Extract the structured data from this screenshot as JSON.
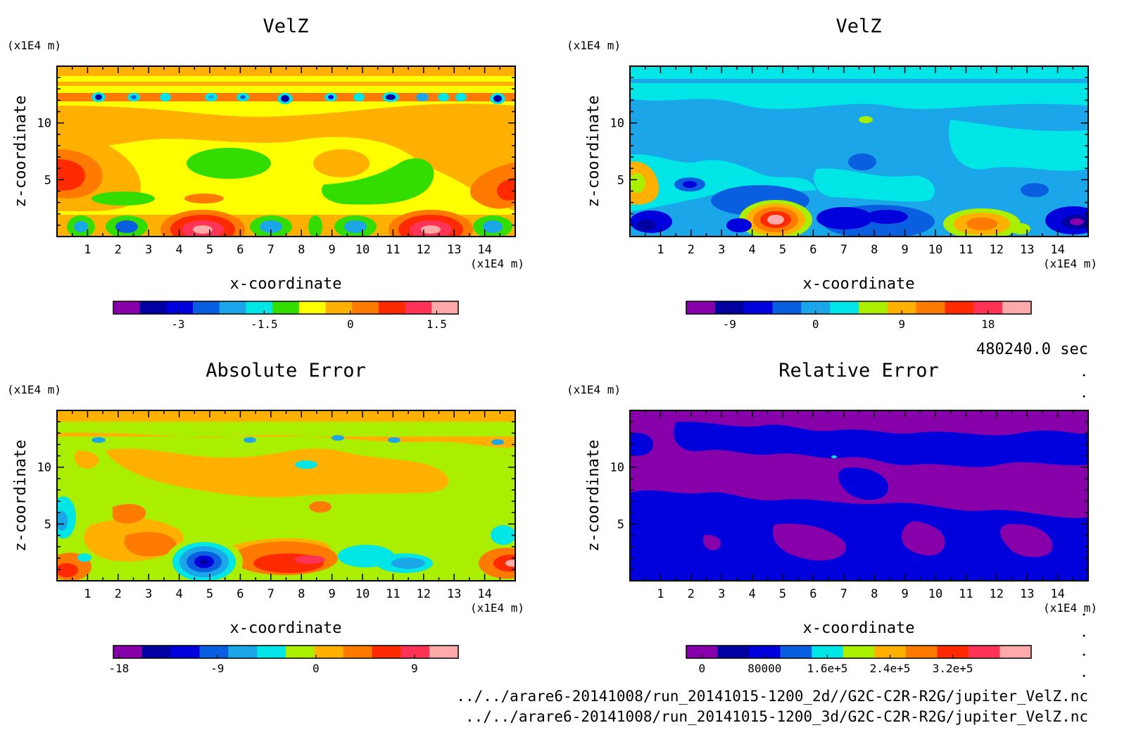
{
  "timestamp": "480240.0 sec",
  "footer_lines": [
    "../../arare6-20141008/run_20141015-1200_2d//G2C-C2R-R2G/jupiter_VelZ.nc",
    "../../arare6-20141008/run_20141015-1200_3d/G2C-C2R-R2G/jupiter_VelZ.nc"
  ],
  "chart_data": [
    {
      "type": "heatmap",
      "title": "VelZ",
      "xlabel": "x-coordinate",
      "ylabel": "z-coordinate",
      "x_unit": "(x1E4 m)",
      "y_unit": "(x1E4 m)",
      "xlim": [
        0,
        15
      ],
      "ylim": [
        0,
        15
      ],
      "x_ticks": [
        "1",
        "2",
        "3",
        "4",
        "5",
        "6",
        "7",
        "8",
        "9",
        "10",
        "11",
        "12",
        "13",
        "14"
      ],
      "y_ticks": [
        "5",
        "10"
      ],
      "colorbar": {
        "colors": [
          "#8800aa",
          "#0000a0",
          "#0000dd",
          "#0a5fe0",
          "#1aa6e8",
          "#00e5e5",
          "#33dd00",
          "#ffff00",
          "#ffb000",
          "#ff7a00",
          "#ff2a00",
          "#ff3355",
          "#ffaaaa"
        ],
        "tick_labels": [
          "-3",
          "-1.5",
          "0",
          "1.5"
        ],
        "tick_levels": [
          -3,
          -1.5,
          0,
          1.5
        ],
        "range": [
          -4.125,
          1.875
        ]
      }
    },
    {
      "type": "heatmap",
      "title": "VelZ",
      "xlabel": "x-coordinate",
      "ylabel": "z-coordinate",
      "x_unit": "(x1E4 m)",
      "y_unit": "(x1E4 m)",
      "xlim": [
        0,
        15
      ],
      "ylim": [
        0,
        15
      ],
      "x_ticks": [
        "1",
        "2",
        "3",
        "4",
        "5",
        "6",
        "7",
        "8",
        "9",
        "10",
        "11",
        "12",
        "13",
        "14"
      ],
      "y_ticks": [
        "5",
        "10"
      ],
      "colorbar": {
        "colors": [
          "#8800aa",
          "#0000a0",
          "#0000dd",
          "#0a5fe0",
          "#1aa6e8",
          "#00e5e5",
          "#aaee00",
          "#ffb000",
          "#ff7a00",
          "#ff2a00",
          "#ff3355",
          "#ffaaaa"
        ],
        "tick_labels": [
          "-9",
          "0",
          "9",
          "18"
        ],
        "tick_levels": [
          -9,
          0,
          9,
          18
        ],
        "range": [
          -13.5,
          22.5
        ]
      }
    },
    {
      "type": "heatmap",
      "title": "Absolute Error",
      "xlabel": "x-coordinate",
      "ylabel": "z-coordinate",
      "x_unit": "(x1E4 m)",
      "y_unit": "(x1E4 m)",
      "xlim": [
        0,
        15
      ],
      "ylim": [
        0,
        15
      ],
      "x_ticks": [
        "1",
        "2",
        "3",
        "4",
        "5",
        "6",
        "7",
        "8",
        "9",
        "10",
        "11",
        "12",
        "13",
        "14"
      ],
      "y_ticks": [
        "5",
        "10"
      ],
      "colorbar": {
        "colors": [
          "#8800aa",
          "#0000a0",
          "#0000dd",
          "#0a5fe0",
          "#1aa6e8",
          "#00e5e5",
          "#aaee00",
          "#ffb000",
          "#ff7a00",
          "#ff2a00",
          "#ff3355",
          "#ffaaaa"
        ],
        "tick_labels": [
          "-18",
          "-9",
          "0",
          "9"
        ],
        "tick_levels": [
          -18,
          -9,
          0,
          9
        ],
        "range": [
          -18.5,
          13
        ]
      }
    },
    {
      "type": "heatmap",
      "title": "Relative Error",
      "xlabel": "x-coordinate",
      "ylabel": "z-coordinate",
      "x_unit": "(x1E4 m)",
      "y_unit": "(x1E4 m)",
      "xlim": [
        0,
        15
      ],
      "ylim": [
        0,
        15
      ],
      "x_ticks": [
        "1",
        "2",
        "3",
        "4",
        "5",
        "6",
        "7",
        "8",
        "9",
        "10",
        "11",
        "12",
        "13",
        "14"
      ],
      "y_ticks": [
        "5",
        "10"
      ],
      "colorbar": {
        "colors": [
          "#8800aa",
          "#0000a0",
          "#0000dd",
          "#0a5fe0",
          "#00e5e5",
          "#aaee00",
          "#ffb000",
          "#ff7a00",
          "#ff2a00",
          "#ff3355",
          "#ffaaaa"
        ],
        "tick_labels": [
          "0",
          "80000",
          "1.6e+5",
          "2.4e+5",
          "3.2e+5"
        ],
        "tick_levels": [
          0,
          80000,
          160000,
          240000,
          320000
        ],
        "range": [
          -20000,
          420000
        ]
      }
    }
  ]
}
